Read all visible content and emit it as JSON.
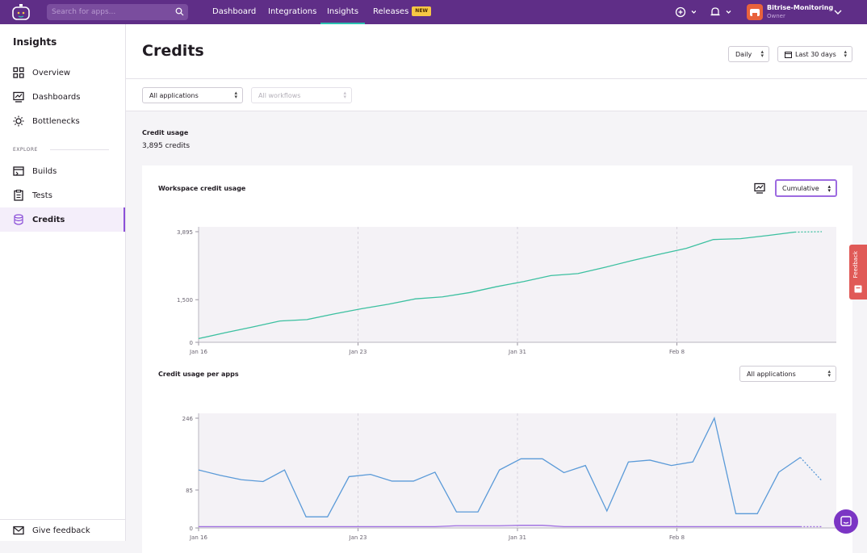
{
  "topbar": {
    "search_placeholder": "Search for apps...",
    "nav": [
      "Dashboard",
      "Integrations",
      "Insights",
      "Releases"
    ],
    "new_badge": "NEW",
    "account_name": "Bitrise-Monitoring",
    "account_role": "Owner"
  },
  "sidebar": {
    "title": "Insights",
    "items": [
      {
        "label": "Overview",
        "icon": "grid-icon"
      },
      {
        "label": "Dashboards",
        "icon": "chart-icon"
      },
      {
        "label": "Bottlenecks",
        "icon": "sun-icon"
      }
    ],
    "explore_label": "EXPLORE",
    "explore_items": [
      {
        "label": "Builds",
        "icon": "builds-icon"
      },
      {
        "label": "Tests",
        "icon": "tests-icon"
      },
      {
        "label": "Credits",
        "icon": "stack-icon"
      }
    ],
    "feedback": "Give feedback"
  },
  "page": {
    "title": "Credits",
    "interval": "Daily",
    "range": "Last 30 days",
    "app_filter": "All applications",
    "workflow_filter": "All workflows",
    "credit_usage_label": "Credit usage",
    "credit_usage_value": "3,895 credits",
    "feedback_tab": "Feedback"
  },
  "chart_data": [
    {
      "type": "line",
      "title": "Workspace credit usage",
      "mode": "Cumulative",
      "yticks": [
        "3,895",
        "1,500",
        "0"
      ],
      "xticks": [
        "Jan 16",
        "Jan 23",
        "Jan 31",
        "Feb 8"
      ],
      "ylim": [
        0,
        3895
      ],
      "series": [
        {
          "color": "#3cc0a0",
          "values": [
            130,
            340,
            540,
            750,
            800,
            1000,
            1180,
            1340,
            1530,
            1600,
            1750,
            1960,
            2140,
            2350,
            2420,
            2640,
            2880,
            3100,
            3310,
            3620,
            3650,
            3760,
            3880,
            3895
          ]
        }
      ]
    },
    {
      "type": "line",
      "title": "Credit usage per apps",
      "filter": "All applications",
      "yticks": [
        "246",
        "85",
        "0"
      ],
      "xticks": [
        "Jan 16",
        "Jan 23",
        "Jan 31",
        "Feb 8"
      ],
      "ylim": [
        0,
        246
      ],
      "series": [
        {
          "color": "#5a9ad8",
          "values": [
            130,
            118,
            108,
            104,
            130,
            25,
            25,
            115,
            120,
            105,
            105,
            125,
            36,
            36,
            130,
            155,
            155,
            124,
            140,
            38,
            148,
            152,
            140,
            148,
            246,
            32,
            32,
            125,
            158,
            106
          ]
        },
        {
          "color": "#9d6be0",
          "values": [
            3,
            3,
            3,
            3,
            3,
            3,
            3,
            3,
            3,
            3,
            3,
            3,
            5,
            5,
            5,
            6,
            6,
            3,
            3,
            3,
            3,
            3,
            3,
            3,
            3,
            3,
            3,
            3,
            3,
            3
          ]
        }
      ]
    }
  ]
}
